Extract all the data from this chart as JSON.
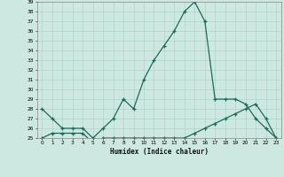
{
  "xlabel": "Humidex (Indice chaleur)",
  "background_color": "#cce8e0",
  "grid_color": "#aacfc8",
  "line_color": "#1a6b5a",
  "x_values": [
    0,
    1,
    2,
    3,
    4,
    5,
    6,
    7,
    8,
    9,
    10,
    11,
    12,
    13,
    14,
    15,
    16,
    17,
    18,
    19,
    20,
    21,
    22,
    23
  ],
  "series1_y": [
    28,
    27,
    26,
    26,
    26,
    25,
    26,
    27,
    29,
    28,
    31,
    33,
    34.5,
    36,
    38,
    39,
    37,
    29,
    29,
    29,
    28.5,
    27,
    26,
    25
  ],
  "series2_y": [
    25,
    25.5,
    25.5,
    25.5,
    25.5,
    24.5,
    25,
    25,
    25,
    25,
    25,
    25,
    25,
    25,
    25,
    25.5,
    26,
    26.5,
    27,
    27.5,
    28,
    28.5,
    27,
    25
  ],
  "ylim_min": 25,
  "ylim_max": 39,
  "xlim_min": -0.5,
  "xlim_max": 23.5,
  "xtick_labels": [
    "0",
    "1",
    "2",
    "3",
    "4",
    "5",
    "6",
    "7",
    "8",
    "9",
    "10",
    "11",
    "12",
    "13",
    "14",
    "15",
    "16",
    "17",
    "18",
    "19",
    "20",
    "21",
    "22",
    "23"
  ]
}
